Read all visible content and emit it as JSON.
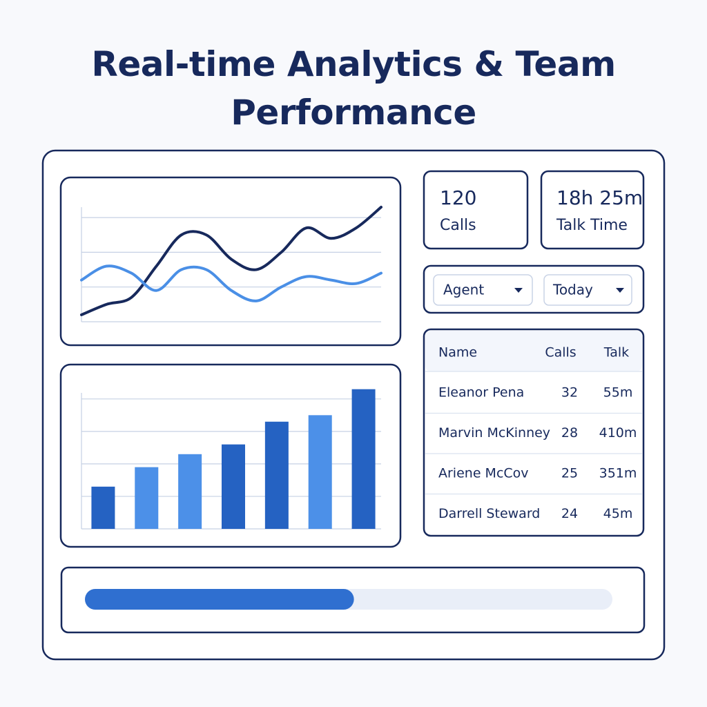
{
  "header": {
    "title": "Real-time Analytics & Team Performance"
  },
  "chart_data": [
    {
      "type": "line",
      "x": [
        0,
        1,
        2,
        3,
        4,
        5,
        6,
        7,
        8,
        9,
        10,
        11,
        12
      ],
      "xlim": [
        0,
        12
      ],
      "ylim": [
        0,
        3.3
      ],
      "yticks": [
        0,
        1,
        2,
        3
      ],
      "grid": true,
      "series": [
        {
          "color": "#17295c",
          "values": [
            0.2,
            0.5,
            0.7,
            1.6,
            2.5,
            2.5,
            1.8,
            1.5,
            2.0,
            2.7,
            2.4,
            2.7,
            3.3
          ]
        },
        {
          "color": "#4a8fe6",
          "values": [
            1.2,
            1.6,
            1.4,
            0.9,
            1.5,
            1.5,
            0.9,
            0.6,
            1.0,
            1.3,
            1.2,
            1.1,
            1.4
          ]
        }
      ]
    },
    {
      "type": "bar",
      "values": [
        1.3,
        1.9,
        2.3,
        2.6,
        3.3,
        3.5,
        4.3
      ],
      "colors": [
        "#2562c2",
        "#4c90e8",
        "#4c90e8",
        "#2562c2",
        "#2562c2",
        "#4c90e8",
        "#2562c2"
      ],
      "ylim": [
        0,
        4.4
      ],
      "yticks": [
        0,
        1,
        2,
        3,
        4
      ],
      "grid": true
    }
  ],
  "kpis": [
    {
      "value": 120,
      "label": "Calls"
    },
    {
      "value": "18h 25m",
      "label": "Talk Time"
    }
  ],
  "filters": [
    "Agent",
    "Today"
  ],
  "table": {
    "columns": [
      "Name",
      "Calls",
      "Talk"
    ],
    "rows": [
      [
        "Eleanor Pena",
        32,
        "55m"
      ],
      [
        "Marvin McKinney",
        28,
        "410m"
      ],
      [
        "Ariene McCov",
        25,
        "351m"
      ],
      [
        "Darrell Steward",
        24,
        "45m"
      ]
    ]
  },
  "progress": {
    "value": 51,
    "xlim": [
      0,
      100
    ],
    "color": "#2f6fd0"
  }
}
